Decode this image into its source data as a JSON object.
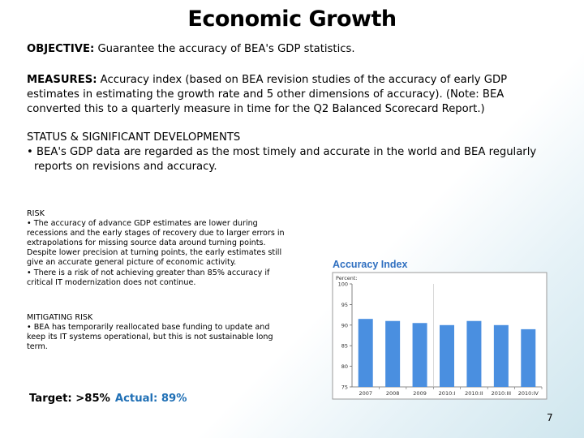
{
  "title": "Economic Growth",
  "objective": {
    "label": "OBJECTIVE:",
    "text": " Guarantee the accuracy of BEA's GDP statistics."
  },
  "measures": {
    "label": "MEASURES:",
    "text": " Accuracy index (based on BEA revision studies of the accuracy of early GDP estimates in estimating the growth rate and 5 other dimensions of accuracy). (Note: BEA converted this to a quarterly measure in time for the Q2 Balanced Scorecard Report.)"
  },
  "status": {
    "heading": "STATUS & SIGNIFICANT DEVELOPMENTS",
    "bullet": "• BEA's GDP data are regarded as the most timely and accurate in the world and BEA regularly reports on revisions and accuracy."
  },
  "risk": {
    "heading": "RISK",
    "bullet1": "• The accuracy of advance GDP estimates are lower during recessions and the early stages of recovery due to larger errors in extrapolations for missing source data around turning points. Despite lower precision at turning points, the early estimates still give an accurate general picture of economic activity.",
    "bullet2": "• There is a risk of not achieving greater than 85% accuracy if critical IT modernization does not continue."
  },
  "mitigating": {
    "heading": "MITIGATING RISK",
    "bullet": "• BEA has temporarily reallocated base funding to update and keep its IT systems operational, but this is not sustainable long term."
  },
  "target": {
    "target_text": "Target: >85%",
    "actual_text": "Actual: 89%"
  },
  "page_number": "7",
  "colors": {
    "bar": "#4a8fe0",
    "chart_title": "#2f6fc0",
    "actual": "#1f6fb5"
  },
  "chart_data": {
    "type": "bar",
    "title": "Accuracy Index",
    "ylabel": "Percent",
    "categories": [
      "2007",
      "2008",
      "2009",
      "2010:I",
      "2010:II",
      "2010:III",
      "2010:IV"
    ],
    "values": [
      91.5,
      91,
      90.5,
      90,
      91,
      90,
      89
    ],
    "ylim": [
      75,
      100
    ],
    "yticks": [
      75,
      80,
      85,
      90,
      95,
      100
    ],
    "grid": false
  }
}
